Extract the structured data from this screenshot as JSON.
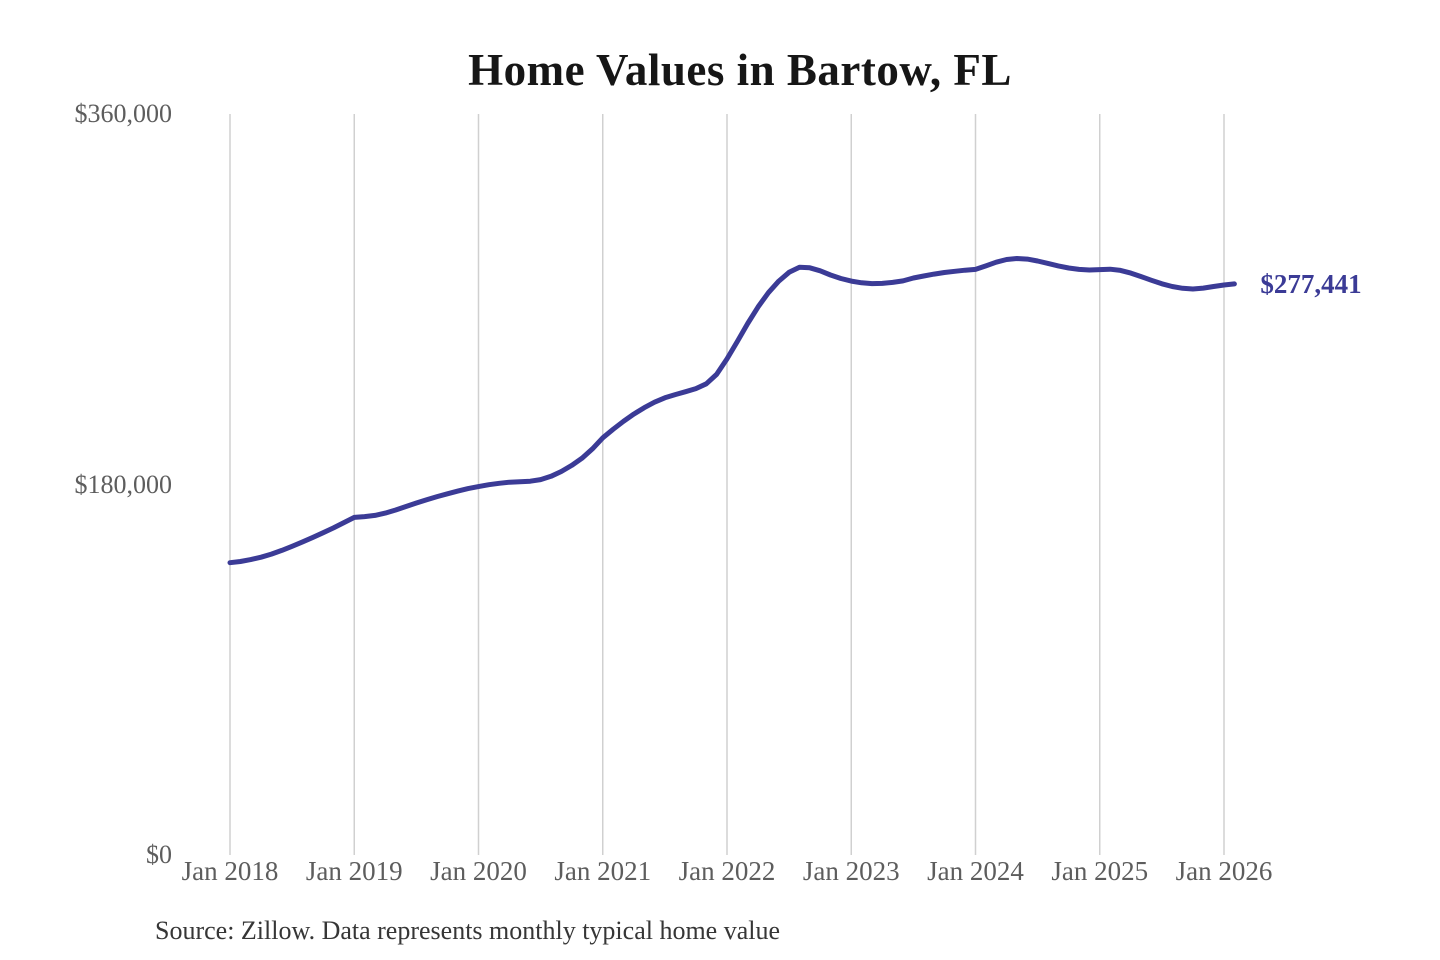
{
  "chart_data": {
    "type": "line",
    "title": "Home Values in Bartow, FL",
    "series_name": "Monthly typical home value",
    "x_start": "2018-01",
    "x_freq": "monthly",
    "x_tick_labels": [
      "Jan 2018",
      "Jan 2019",
      "Jan 2020",
      "Jan 2021",
      "Jan 2022",
      "Jan 2023",
      "Jan 2024",
      "Jan 2025",
      "Jan 2026"
    ],
    "y_ticks": [
      {
        "value": 360000,
        "label": "$360,000"
      },
      {
        "value": 180000,
        "label": "$180,000"
      },
      {
        "value": 0,
        "label": "$0"
      }
    ],
    "ylim": [
      0,
      360000
    ],
    "grid": "vertical-only",
    "legend": "none",
    "line_color": "#3b3b96",
    "grid_color": "#d0d0d0",
    "values": [
      142000,
      142600,
      143500,
      144700,
      146200,
      148000,
      150000,
      152100,
      154300,
      156600,
      158900,
      161500,
      164000,
      164400,
      165000,
      166100,
      167600,
      169300,
      171000,
      172600,
      174100,
      175500,
      176800,
      178000,
      179000,
      179900,
      180600,
      181100,
      181300,
      181600,
      182400,
      184000,
      186300,
      189300,
      192800,
      197300,
      202700,
      206800,
      210700,
      214200,
      217300,
      220000,
      222100,
      223700,
      225100,
      226600,
      228900,
      233500,
      241000,
      249500,
      258200,
      266300,
      273200,
      278800,
      283100,
      285500,
      285300,
      283800,
      281800,
      280100,
      278800,
      278000,
      277600,
      277700,
      278200,
      278900,
      280300,
      281300,
      282200,
      283000,
      283600,
      284100,
      284500,
      286200,
      288000,
      289300,
      289800,
      289500,
      288600,
      287400,
      286200,
      285200,
      284500,
      284200,
      284400,
      284600,
      284000,
      282700,
      281000,
      279200,
      277500,
      276200,
      275300,
      275000,
      275400,
      276200,
      276900,
      277441
    ],
    "end_label": "$277,441",
    "final_value": 277441
  },
  "footer": {
    "source_note": "Source: Zillow. Data represents monthly typical home value"
  }
}
